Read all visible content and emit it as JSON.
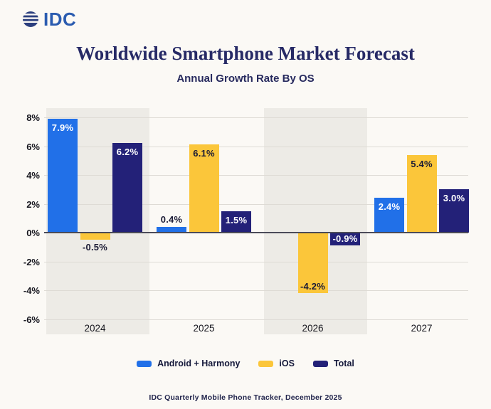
{
  "logo": {
    "text": "IDC"
  },
  "header": {
    "title": "Worldwide Smartphone Market Forecast",
    "subtitle": "Annual Growth Rate By OS"
  },
  "footer": {
    "source": "IDC Quarterly Mobile Phone Tracker, December 2025"
  },
  "colors": {
    "background": "#fbf9f5",
    "band": "#edebe6",
    "gridline": "#dedbd5",
    "zero_line": "#4b4b58",
    "title": "#272a66",
    "android_blue": "#2170e8",
    "ios_yellow": "#fbc63a",
    "total_navy": "#232178",
    "dark_label": "#1b1b35",
    "logo_blue": "#2b5cb0",
    "logo_globe_navy": "#2b3f7e"
  },
  "chart_data": {
    "type": "bar",
    "title": "Worldwide Smartphone Market Forecast",
    "subtitle": "Annual Growth Rate By OS",
    "source": "IDC Quarterly Mobile Phone Tracker, December 2025",
    "categories": [
      "2024",
      "2025",
      "2026",
      "2027"
    ],
    "series": [
      {
        "name": "Android + Harmony",
        "color": "#2170e8",
        "inside_label_color": "#ffffff",
        "values": [
          7.9,
          0.4,
          null,
          2.4
        ],
        "labels": [
          "7.9%",
          "0.4%",
          null,
          "2.4%"
        ],
        "label_placement": [
          "inside",
          "above",
          null,
          "inside"
        ]
      },
      {
        "name": "iOS",
        "color": "#fbc63a",
        "inside_label_color": "#1b1b35",
        "values": [
          -0.5,
          6.1,
          -4.2,
          5.4
        ],
        "labels": [
          "-0.5%",
          "6.1%",
          "-4.2%",
          "5.4%"
        ],
        "label_placement": [
          "below",
          "inside",
          "inside",
          "inside"
        ]
      },
      {
        "name": "Total",
        "color": "#232178",
        "inside_label_color": "#ffffff",
        "values": [
          6.2,
          1.5,
          -0.9,
          3.0
        ],
        "labels": [
          "6.2%",
          "1.5%",
          "-0.9%",
          "3.0%"
        ],
        "label_placement": [
          "inside",
          "inside",
          "inside",
          "inside"
        ]
      }
    ],
    "y_ticks": [
      8,
      6,
      4,
      2,
      0,
      -2,
      -4,
      -6
    ],
    "y_tick_labels": [
      "8%",
      "6%",
      "4%",
      "2%",
      "0%",
      "-2%",
      "-4%",
      "-6%"
    ],
    "ylim": [
      -6.6,
      8.6
    ],
    "grid": true,
    "legend_position": "bottom",
    "shaded_category_bands": [
      0,
      2
    ]
  }
}
